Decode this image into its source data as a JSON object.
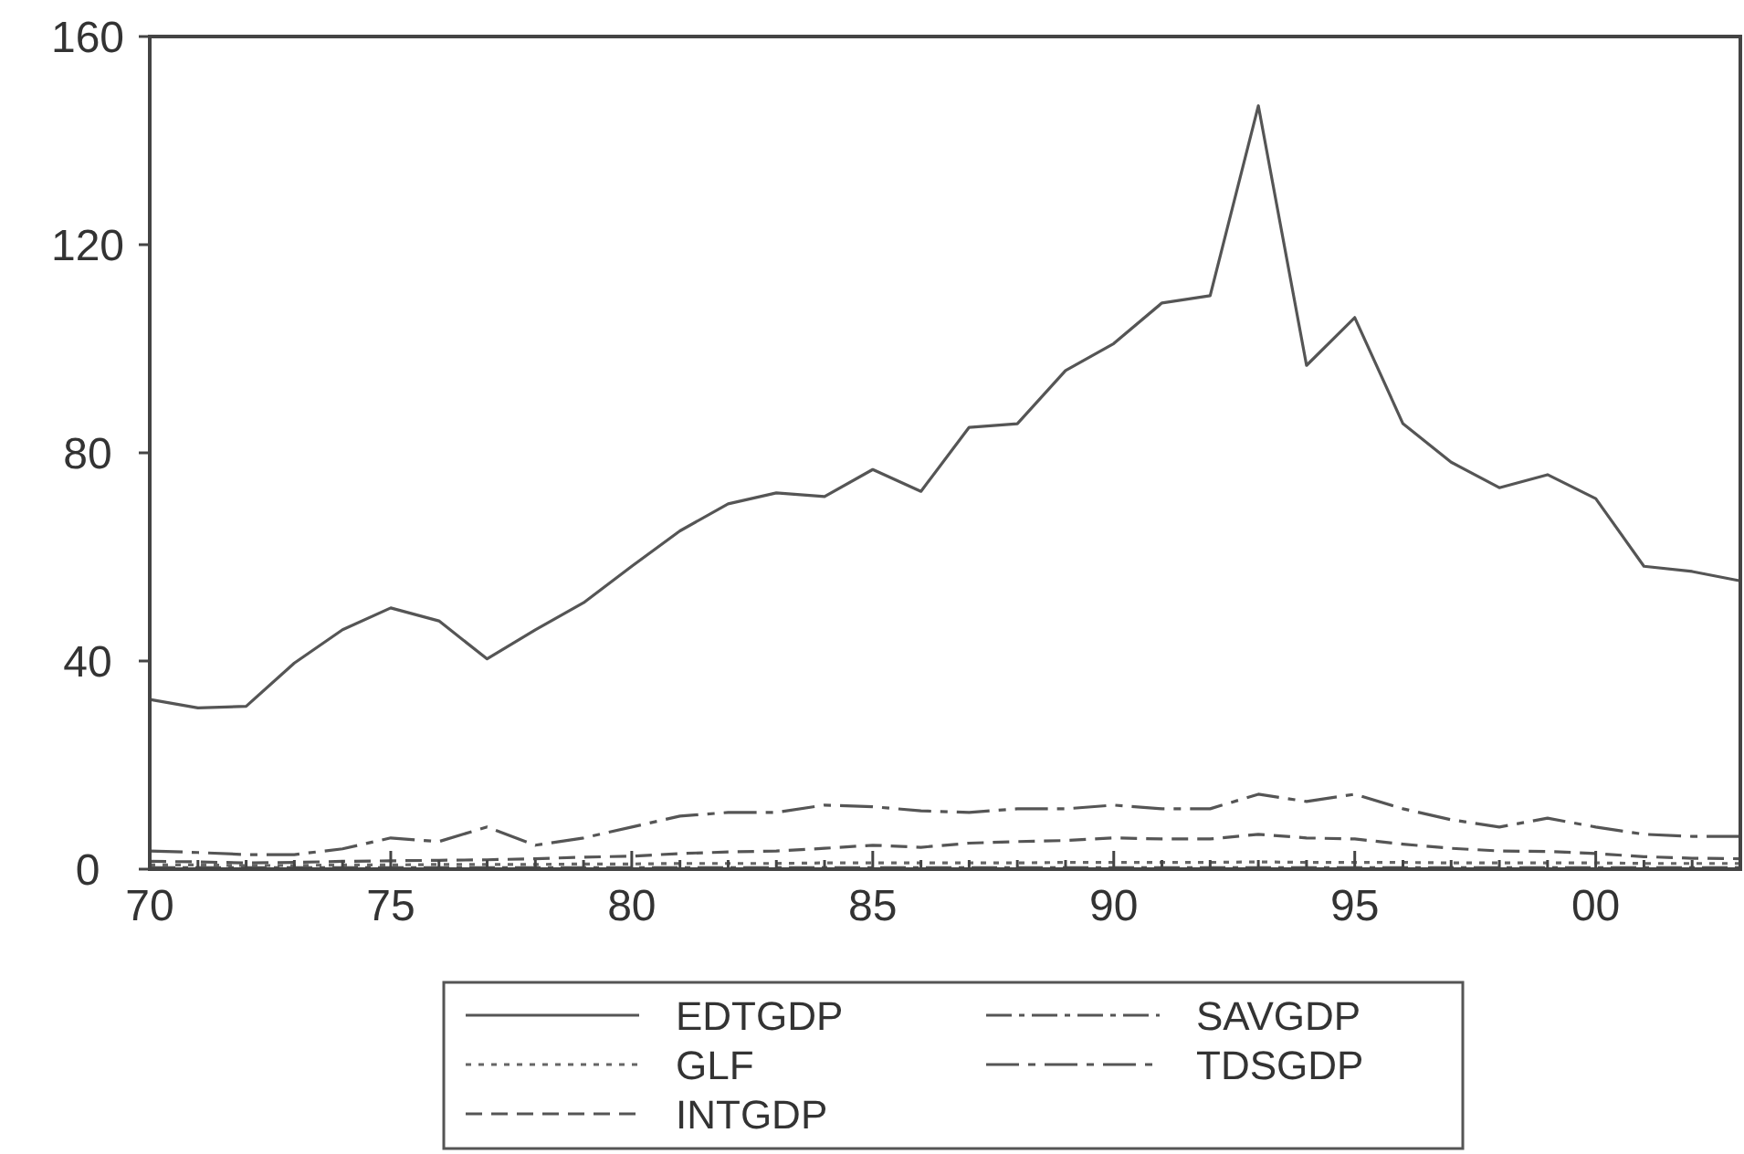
{
  "chart_data": {
    "type": "line",
    "x": [
      1970,
      1971,
      1972,
      1973,
      1974,
      1975,
      1976,
      1977,
      1978,
      1979,
      1980,
      1981,
      1982,
      1983,
      1984,
      1985,
      1986,
      1987,
      1988,
      1989,
      1990,
      1991,
      1992,
      1993,
      1994,
      1995,
      1996,
      1997,
      1998,
      1999,
      2000,
      2001,
      2002,
      2003
    ],
    "series": [
      {
        "name": "EDTGDP",
        "color": "#555555",
        "line_style": "solid",
        "values": [
          32.6,
          31,
          31.3,
          39.6,
          46,
          50.2,
          47.7,
          40.4,
          46,
          51.2,
          58.2,
          65,
          70.2,
          72.3,
          71.6,
          76.8,
          72.6,
          84.9,
          85.6,
          95.8,
          101,
          108.8,
          110.2,
          146.7,
          96.8,
          106,
          85.6,
          78.2,
          73.3,
          75.8,
          71.2,
          58.2,
          57.2,
          55.4
        ]
      },
      {
        "name": "GLF",
        "color": "#666666",
        "line_style": "dotted",
        "values": [
          0.8,
          0.8,
          0.7,
          0.7,
          0.8,
          0.8,
          0.9,
          0.9,
          0.9,
          1,
          1,
          1.1,
          1.1,
          1.1,
          1.2,
          1.2,
          1.2,
          1.2,
          1.2,
          1.3,
          1.3,
          1.3,
          1.3,
          1.4,
          1.3,
          1.3,
          1.3,
          1.2,
          1.2,
          1.2,
          1.2,
          1.1,
          1.1,
          1.1
        ]
      },
      {
        "name": "INTGDP",
        "color": "#555555",
        "line_style": "dashed",
        "values": [
          1.5,
          1.4,
          1.2,
          1.3,
          1.5,
          1.6,
          1.7,
          1.8,
          2,
          2.3,
          2.5,
          3,
          3.3,
          3.5,
          4,
          4.6,
          4.2,
          5,
          5.3,
          5.5,
          6,
          5.8,
          5.8,
          6.7,
          6,
          5.8,
          4.8,
          4,
          3.5,
          3.4,
          3,
          2.4,
          2.1,
          2
        ]
      },
      {
        "name": "SAVGDP",
        "color": "#555555",
        "line_style": "dashdot",
        "values": [
          0.3,
          0.3,
          0.3,
          0.3,
          0.3,
          0.3,
          0.3,
          0.3,
          0.3,
          0.3,
          0.3,
          0.3,
          0.3,
          0.3,
          0.3,
          0.3,
          0.3,
          0.3,
          0.3,
          0.3,
          0.3,
          0.3,
          0.3,
          0.3,
          0.3,
          0.3,
          0.3,
          0.3,
          0.3,
          0.3,
          0.3,
          0.3,
          0.3,
          0.3
        ]
      },
      {
        "name": "TDSGDP",
        "color": "#555555",
        "line_style": "longdash",
        "values": [
          3.5,
          3.2,
          2.8,
          2.8,
          3.9,
          6,
          5.3,
          8.1,
          4.6,
          6,
          8.1,
          10.2,
          10.9,
          10.9,
          12.3,
          12,
          11.2,
          10.9,
          11.6,
          11.6,
          12.3,
          11.6,
          11.6,
          14.4,
          13,
          14.4,
          11.6,
          9.5,
          8.1,
          9.8,
          8.1,
          6.7,
          6.3,
          6.3
        ]
      }
    ],
    "xlim": [
      1970,
      2003
    ],
    "xticks": [
      {
        "value": 1970,
        "label": "70"
      },
      {
        "value": 1971,
        "label": null
      },
      {
        "value": 1972,
        "label": null
      },
      {
        "value": 1973,
        "label": null
      },
      {
        "value": 1974,
        "label": null
      },
      {
        "value": 1975,
        "label": "75"
      },
      {
        "value": 1976,
        "label": null
      },
      {
        "value": 1977,
        "label": null
      },
      {
        "value": 1978,
        "label": null
      },
      {
        "value": 1979,
        "label": null
      },
      {
        "value": 1980,
        "label": "80"
      },
      {
        "value": 1981,
        "label": null
      },
      {
        "value": 1982,
        "label": null
      },
      {
        "value": 1983,
        "label": null
      },
      {
        "value": 1984,
        "label": null
      },
      {
        "value": 1985,
        "label": "85"
      },
      {
        "value": 1986,
        "label": null
      },
      {
        "value": 1987,
        "label": null
      },
      {
        "value": 1988,
        "label": null
      },
      {
        "value": 1989,
        "label": null
      },
      {
        "value": 1990,
        "label": "90"
      },
      {
        "value": 1991,
        "label": null
      },
      {
        "value": 1992,
        "label": null
      },
      {
        "value": 1993,
        "label": null
      },
      {
        "value": 1994,
        "label": null
      },
      {
        "value": 1995,
        "label": "95"
      },
      {
        "value": 1996,
        "label": null
      },
      {
        "value": 1997,
        "label": null
      },
      {
        "value": 1998,
        "label": null
      },
      {
        "value": 1999,
        "label": null
      },
      {
        "value": 2000,
        "label": "00"
      },
      {
        "value": 2001,
        "label": null
      },
      {
        "value": 2002,
        "label": null
      }
    ],
    "ylim": [
      0,
      160
    ],
    "yticks": [
      0,
      40,
      80,
      120,
      160
    ],
    "grid": false,
    "legend": "bottom"
  }
}
